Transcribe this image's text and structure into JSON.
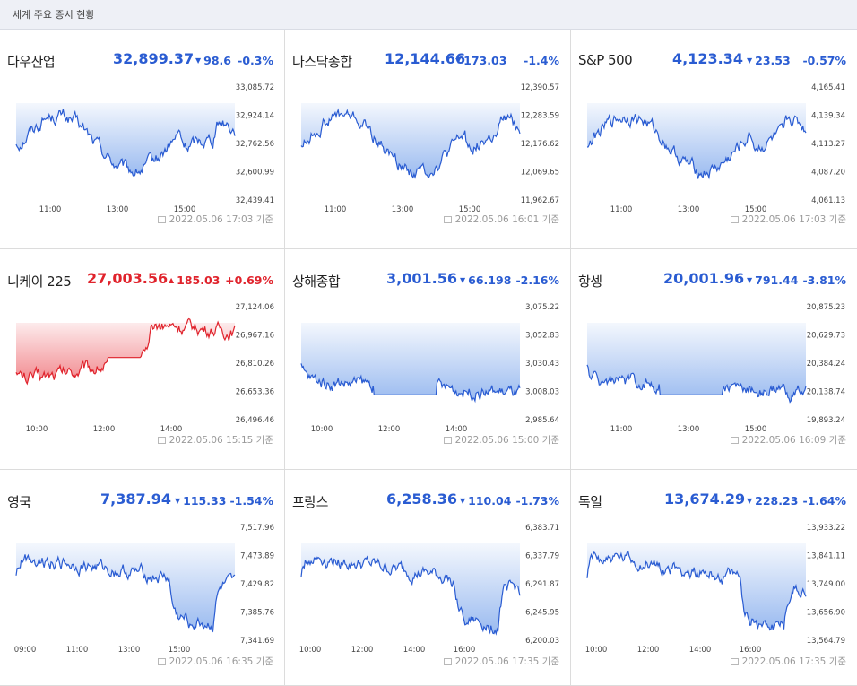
{
  "header": {
    "title": "세계 주요 증시 현황"
  },
  "colors": {
    "down": "#2a5cd2",
    "up": "#e0232c",
    "fill_down": "#8fb3ee",
    "fill_up": "#f07a80"
  },
  "markets": [
    {
      "name": "다우산업",
      "price": "32,899.37",
      "change": "98.6",
      "pct": "-0.3%",
      "dir": "down",
      "stamp": "2022.05.06 17:03",
      "stamp_suffix": "기준",
      "yticks": [
        "33,085.72",
        "32,924.14",
        "32,762.56",
        "32,600.99",
        "32,439.41"
      ],
      "xticks": [
        "11:00",
        "13:00",
        "15:00"
      ]
    },
    {
      "name": "나스닥종합",
      "price": "12,144.66",
      "change": "173.03",
      "pct": "-1.4%",
      "dir": "down",
      "stamp": "2022.05.06 16:01",
      "stamp_suffix": "기준",
      "yticks": [
        "12,390.57",
        "12,283.59",
        "12,176.62",
        "12,069.65",
        "11,962.67"
      ],
      "xticks": [
        "11:00",
        "13:00",
        "15:00"
      ]
    },
    {
      "name": "S&P 500",
      "price": "4,123.34",
      "change": "23.53",
      "pct": "-0.57%",
      "dir": "down",
      "stamp": "2022.05.06 17:03",
      "stamp_suffix": "기준",
      "yticks": [
        "4,165.41",
        "4,139.34",
        "4,113.27",
        "4,087.20",
        "4,061.13"
      ],
      "xticks": [
        "11:00",
        "13:00",
        "15:00"
      ]
    },
    {
      "name": "니케이 225",
      "price": "27,003.56",
      "change": "185.03",
      "pct": "+0.69%",
      "dir": "up",
      "stamp": "2022.05.06 15:15",
      "stamp_suffix": "기준",
      "yticks": [
        "27,124.06",
        "26,967.16",
        "26,810.26",
        "26,653.36",
        "26,496.46"
      ],
      "xticks": [
        "10:00",
        "12:00",
        "14:00"
      ]
    },
    {
      "name": "상해종합",
      "price": "3,001.56",
      "change": "66.198",
      "pct": "-2.16%",
      "dir": "down",
      "stamp": "2022.05.06 15:00",
      "stamp_suffix": "기준",
      "yticks": [
        "3,075.22",
        "3,052.83",
        "3,030.43",
        "3,008.03",
        "2,985.64"
      ],
      "xticks": [
        "10:00",
        "12:00",
        "14:00"
      ]
    },
    {
      "name": "항셍",
      "price": "20,001.96",
      "change": "791.44",
      "pct": "-3.81%",
      "dir": "down",
      "stamp": "2022.05.06 16:09",
      "stamp_suffix": "기준",
      "yticks": [
        "20,875.23",
        "20,629.73",
        "20,384.24",
        "20,138.74",
        "19,893.24"
      ],
      "xticks": [
        "11:00",
        "13:00",
        "15:00"
      ]
    },
    {
      "name": "영국",
      "price": "7,387.94",
      "change": "115.33",
      "pct": "-1.54%",
      "dir": "down",
      "stamp": "2022.05.06 16:35",
      "stamp_suffix": "기준",
      "yticks": [
        "7,517.96",
        "7,473.89",
        "7,429.82",
        "7,385.76",
        "7,341.69"
      ],
      "xticks": [
        "09:00",
        "11:00",
        "13:00",
        "15:00"
      ]
    },
    {
      "name": "프랑스",
      "price": "6,258.36",
      "change": "110.04",
      "pct": "-1.73%",
      "dir": "down",
      "stamp": "2022.05.06 17:35",
      "stamp_suffix": "기준",
      "yticks": [
        "6,383.71",
        "6,337.79",
        "6,291.87",
        "6,245.95",
        "6,200.03"
      ],
      "xticks": [
        "10:00",
        "12:00",
        "14:00",
        "16:00"
      ]
    },
    {
      "name": "독일",
      "price": "13,674.29",
      "change": "228.23",
      "pct": "-1.64%",
      "dir": "down",
      "stamp": "2022.05.06 17:35",
      "stamp_suffix": "기준",
      "yticks": [
        "13,933.22",
        "13,841.11",
        "13,749.00",
        "13,656.90",
        "13,564.79"
      ],
      "xticks": [
        "10:00",
        "12:00",
        "14:00",
        "16:00"
      ]
    }
  ]
}
